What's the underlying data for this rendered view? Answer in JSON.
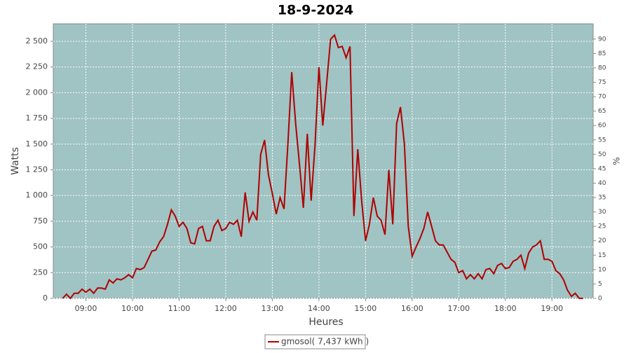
{
  "chart_data": {
    "type": "line",
    "title": "18-9-2024",
    "x_label": "Heures",
    "y_label": "Watts",
    "y2_label": "%",
    "x": [
      "08:30",
      "08:35",
      "08:40",
      "08:45",
      "08:50",
      "08:55",
      "09:00",
      "09:05",
      "09:10",
      "09:15",
      "09:20",
      "09:25",
      "09:30",
      "09:35",
      "09:40",
      "09:45",
      "09:50",
      "09:55",
      "10:00",
      "10:05",
      "10:10",
      "10:15",
      "10:20",
      "10:25",
      "10:30",
      "10:35",
      "10:40",
      "10:45",
      "10:50",
      "10:55",
      "11:00",
      "11:05",
      "11:10",
      "11:15",
      "11:20",
      "11:25",
      "11:30",
      "11:35",
      "11:40",
      "11:45",
      "11:50",
      "11:55",
      "12:00",
      "12:05",
      "12:10",
      "12:15",
      "12:20",
      "12:25",
      "12:30",
      "12:35",
      "12:40",
      "12:45",
      "12:50",
      "12:55",
      "13:00",
      "13:05",
      "13:10",
      "13:15",
      "13:20",
      "13:25",
      "13:30",
      "13:35",
      "13:40",
      "13:45",
      "13:50",
      "13:55",
      "14:00",
      "14:05",
      "14:10",
      "14:15",
      "14:20",
      "14:25",
      "14:30",
      "14:35",
      "14:40",
      "14:45",
      "14:50",
      "14:55",
      "15:00",
      "15:05",
      "15:10",
      "15:15",
      "15:20",
      "15:25",
      "15:30",
      "15:35",
      "15:40",
      "15:45",
      "15:50",
      "15:55",
      "16:00",
      "16:05",
      "16:10",
      "16:15",
      "16:20",
      "16:25",
      "16:30",
      "16:35",
      "16:40",
      "16:45",
      "16:50",
      "16:55",
      "17:00",
      "17:05",
      "17:10",
      "17:15",
      "17:20",
      "17:25",
      "17:30",
      "17:35",
      "17:40",
      "17:45",
      "17:50",
      "17:55",
      "18:00",
      "18:05",
      "18:10",
      "18:15",
      "18:20",
      "18:25",
      "18:30",
      "18:35",
      "18:40",
      "18:45",
      "18:50",
      "18:55",
      "19:00",
      "19:05",
      "19:10",
      "19:15",
      "19:20",
      "19:25",
      "19:30",
      "19:35",
      "19:40"
    ],
    "series": [
      {
        "name": "gmosol( 7,437 kWh )",
        "color": "#b00000",
        "values": [
          0,
          40,
          0,
          50,
          50,
          90,
          60,
          90,
          50,
          100,
          100,
          90,
          180,
          150,
          190,
          180,
          200,
          230,
          200,
          290,
          280,
          300,
          380,
          460,
          470,
          550,
          600,
          720,
          860,
          800,
          700,
          740,
          680,
          540,
          530,
          680,
          700,
          560,
          560,
          700,
          760,
          660,
          680,
          740,
          720,
          760,
          600,
          1030,
          750,
          840,
          760,
          1400,
          1540,
          1200,
          1020,
          820,
          980,
          870,
          1500,
          2200,
          1700,
          1300,
          880,
          1600,
          950,
          1500,
          2250,
          1680,
          2100,
          2520,
          2560,
          2440,
          2450,
          2340,
          2450,
          800,
          1450,
          950,
          560,
          720,
          980,
          800,
          760,
          620,
          1250,
          720,
          1700,
          1860,
          1500,
          700,
          410,
          500,
          580,
          680,
          840,
          700,
          560,
          520,
          520,
          450,
          380,
          350,
          250,
          270,
          190,
          230,
          190,
          240,
          190,
          280,
          290,
          240,
          320,
          340,
          290,
          300,
          360,
          380,
          420,
          290,
          440,
          500,
          520,
          560,
          380,
          380,
          360,
          270,
          240,
          180,
          80,
          20,
          50,
          0,
          0
        ]
      }
    ],
    "xlim": [
      "08:18",
      "19:53"
    ],
    "xticks": [
      "09:00",
      "10:00",
      "11:00",
      "12:00",
      "13:00",
      "14:00",
      "15:00",
      "16:00",
      "17:00",
      "18:00",
      "19:00"
    ],
    "ylim": [
      0,
      2670
    ],
    "yticks": [
      0,
      {
        "value": 250,
        "label": "250"
      },
      {
        "value": 500,
        "label": "500"
      },
      {
        "value": 750,
        "label": "750"
      },
      {
        "value": 1000,
        "label": "1 000"
      },
      {
        "value": 1250,
        "label": "1 250"
      },
      {
        "value": 1500,
        "label": "1 500"
      },
      {
        "value": 1750,
        "label": "1 750"
      },
      {
        "value": 2000,
        "label": "2 000"
      },
      {
        "value": 2250,
        "label": "2 250"
      },
      {
        "value": 2500,
        "label": "2 500"
      }
    ],
    "y2lim": [
      0,
      95.3
    ],
    "y2ticks": [
      0,
      5,
      10,
      15,
      20,
      25,
      30,
      35,
      40,
      45,
      50,
      55,
      60,
      65,
      70,
      75,
      80,
      85,
      90
    ],
    "grid": true,
    "plot_background": "#a0c3c3",
    "legend": "bottom"
  }
}
